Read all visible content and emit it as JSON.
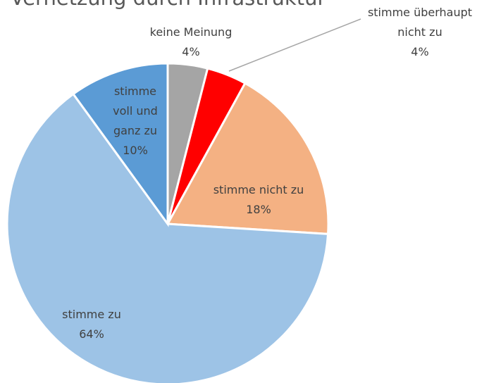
{
  "chart_data": {
    "type": "pie",
    "title": "Vernetzung durch Infrastruktur",
    "categories": [
      "keine Meinung",
      "stimme überhaupt nicht zu",
      "stimme nicht zu",
      "stimme zu",
      "stimme voll und ganz zu"
    ],
    "values": [
      4,
      4,
      18,
      64,
      10
    ],
    "value_labels": [
      "4%",
      "4%",
      "18%",
      "64%",
      "10%"
    ],
    "colors": [
      "#a5a5a5",
      "#ff0000",
      "#f4b183",
      "#9dc3e6",
      "#5b9bd5"
    ]
  }
}
